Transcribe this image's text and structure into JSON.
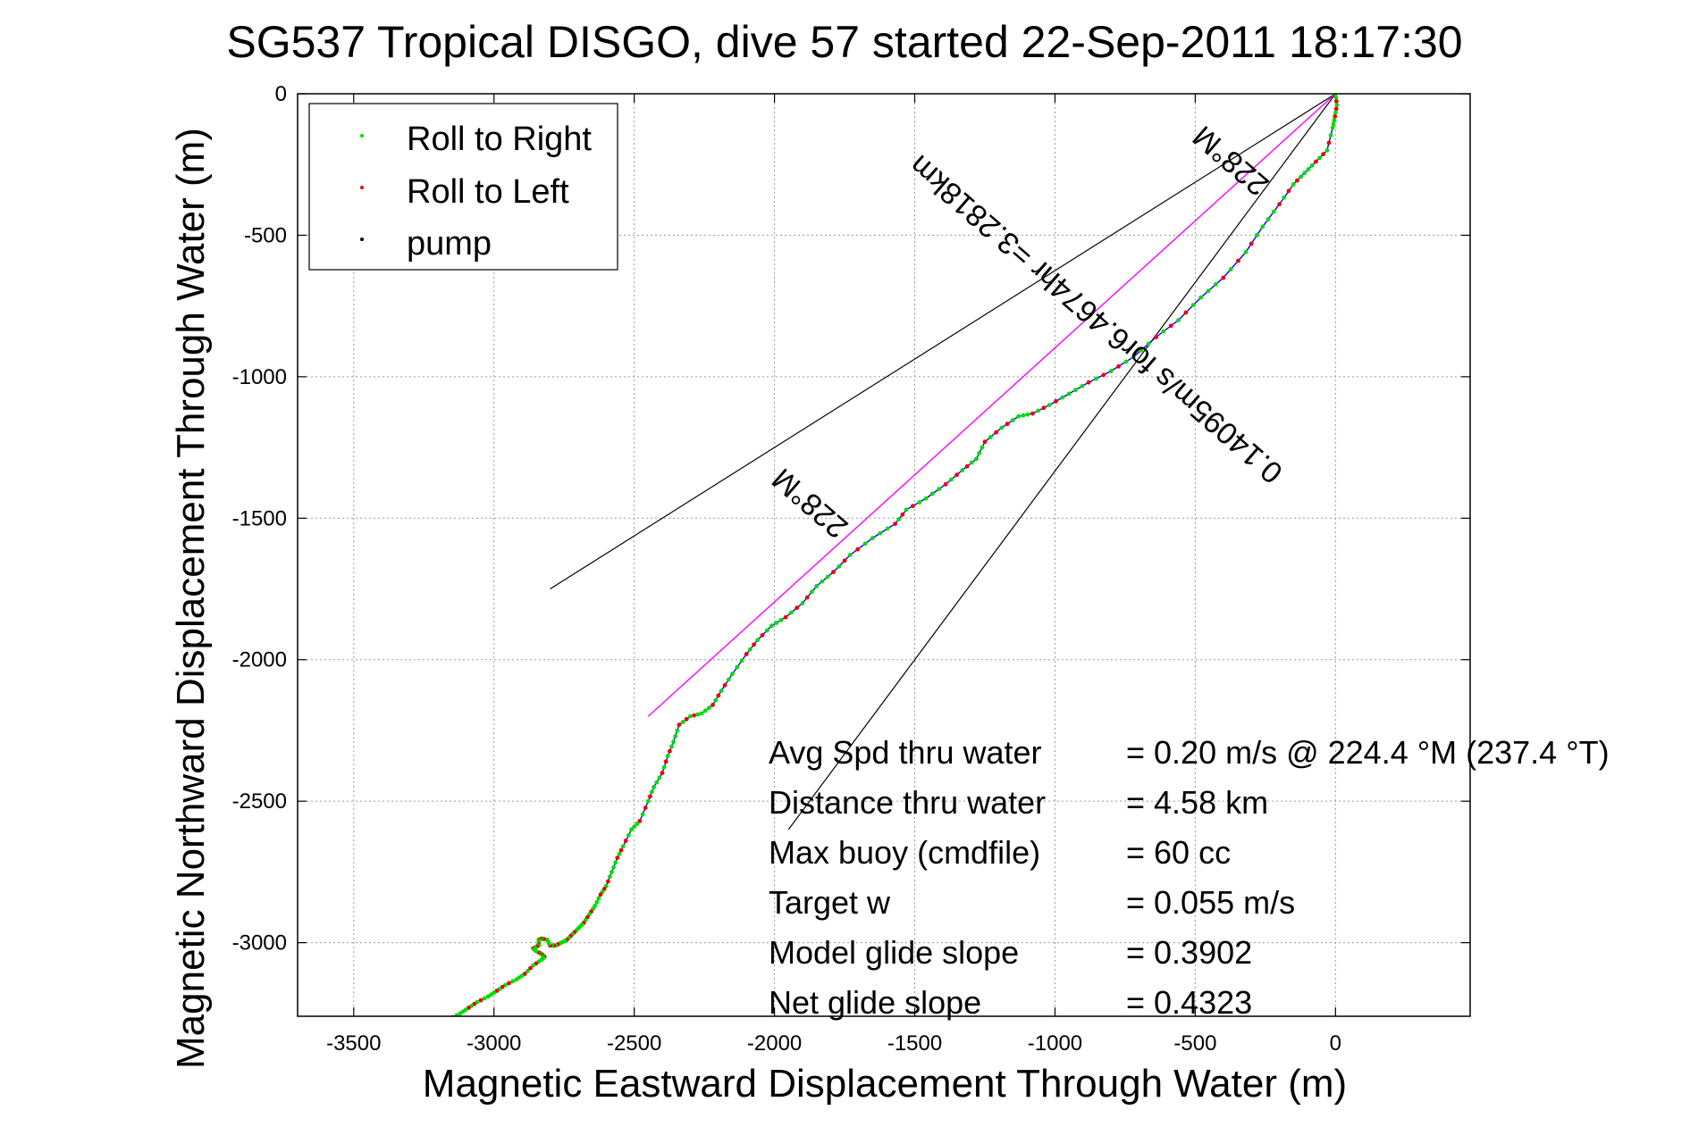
{
  "chart_data": {
    "type": "line",
    "title": "SG537 Tropical DISGO, dive 57 started 22-Sep-2011 18:17:30",
    "xlabel": "Magnetic Eastward Displacement Through Water (m)",
    "ylabel": "Magnetic Northward Displacement Through Water (m)",
    "xlim": [
      -3700,
      480
    ],
    "ylim": [
      -3260,
      0
    ],
    "x_ticks": [
      -3500,
      -3000,
      -2500,
      -2000,
      -1500,
      -1000,
      -500,
      0
    ],
    "y_ticks": [
      0,
      -500,
      -1000,
      -1500,
      -2000,
      -2500,
      -3000
    ],
    "x_tick_labels": [
      "-3500",
      "-3000",
      "-2500",
      "-2000",
      "-1500",
      "-1000",
      "-500",
      "0"
    ],
    "y_tick_labels": [
      "0",
      "-500",
      "-1000",
      "-1500",
      "-2000",
      "-2500",
      "-3000"
    ],
    "grid": true,
    "legend": {
      "position": "top-left",
      "entries": [
        {
          "label": "Roll to Right",
          "color": "#00dd00"
        },
        {
          "label": "Roll to Left",
          "color": "#ee0000"
        },
        {
          "label": "pump",
          "color": "#000000"
        }
      ]
    },
    "series": [
      {
        "color": "#0000ff",
        "x": [
          0,
          5,
          -2,
          -10,
          -30,
          -70,
          -110,
          -150,
          -200,
          -260,
          -320,
          -400,
          -480,
          -560,
          -640,
          -720,
          -800,
          -880,
          -950,
          -1020,
          -1080,
          -1130,
          -1190,
          -1250,
          -1280,
          -1330,
          -1390,
          -1460,
          -1530,
          -1570,
          -1650,
          -1730,
          -1790,
          -1850,
          -1900,
          -1960,
          -2010,
          -2060,
          -2100,
          -2150,
          -2190,
          -2220,
          -2260,
          -2300,
          -2340,
          -2360,
          -2380,
          -2400,
          -2430,
          -2450,
          -2480,
          -2510,
          -2540,
          -2560,
          -2580,
          -2600,
          -2620,
          -2640,
          -2660,
          -2680,
          -2700,
          -2720,
          -2740,
          -2760,
          -2780,
          -2800,
          -2810,
          -2830,
          -2840,
          -2840,
          -2840,
          -2860,
          -2850,
          -2830,
          -2820,
          -2830,
          -2860,
          -2890,
          -2920,
          -2960,
          -2990,
          -3020,
          -3060,
          -3090,
          -3120,
          -3160,
          -3200
        ],
        "y": [
          0,
          -40,
          -80,
          -120,
          -200,
          -240,
          -280,
          -320,
          -390,
          -470,
          -560,
          -650,
          -720,
          -800,
          -860,
          -930,
          -980,
          -1020,
          -1060,
          -1100,
          -1130,
          -1140,
          -1180,
          -1230,
          -1290,
          -1330,
          -1380,
          -1430,
          -1470,
          -1520,
          -1570,
          -1630,
          -1690,
          -1740,
          -1800,
          -1850,
          -1880,
          -1930,
          -1980,
          -2050,
          -2110,
          -2160,
          -2190,
          -2200,
          -2230,
          -2290,
          -2340,
          -2400,
          -2450,
          -2500,
          -2570,
          -2600,
          -2660,
          -2700,
          -2750,
          -2800,
          -2830,
          -2870,
          -2900,
          -2930,
          -2950,
          -2970,
          -2990,
          -3000,
          -3010,
          -3010,
          -2990,
          -2985,
          -2990,
          -3000,
          -3010,
          -3020,
          -3030,
          -3040,
          -3050,
          -3060,
          -3080,
          -3110,
          -3130,
          -3150,
          -3170,
          -3190,
          -3210,
          -3230,
          -3250,
          -3270,
          -3290
        ]
      },
      {
        "color": "#ff00ff",
        "x": [
          0,
          -2450
        ],
        "y": [
          0,
          -2200
        ]
      }
    ],
    "wedge_lines": {
      "color": "#000000",
      "origin": [
        0,
        0
      ],
      "ends": [
        [
          -2800,
          -1750
        ],
        [
          -1950,
          -2600
        ]
      ]
    },
    "annotations": [
      {
        "text": "228°M",
        "x": -1850,
        "y": -1420,
        "rotation_deg": 221
      },
      {
        "text": "0.14095m/s for6.4674hr =3.2818km",
        "x": -830,
        "y": -770,
        "rotation_deg": 221
      },
      {
        "text": "228°M",
        "x": -350,
        "y": -210,
        "rotation_deg": 221
      }
    ],
    "stats": [
      {
        "label": "Avg Spd thru water",
        "value": "=  0.20 m/s @ 224.4 °M (237.4 °T)"
      },
      {
        "label": "Distance thru water",
        "value": "=  4.58 km"
      },
      {
        "label": "Max buoy (cmdfile)",
        "value": "= 60 cc"
      },
      {
        "label": "Target w",
        "value": "= 0.055 m/s"
      },
      {
        "label": "Model glide slope",
        "value": "= 0.3902"
      },
      {
        "label": "Net glide slope",
        "value": "= 0.4323"
      }
    ]
  }
}
